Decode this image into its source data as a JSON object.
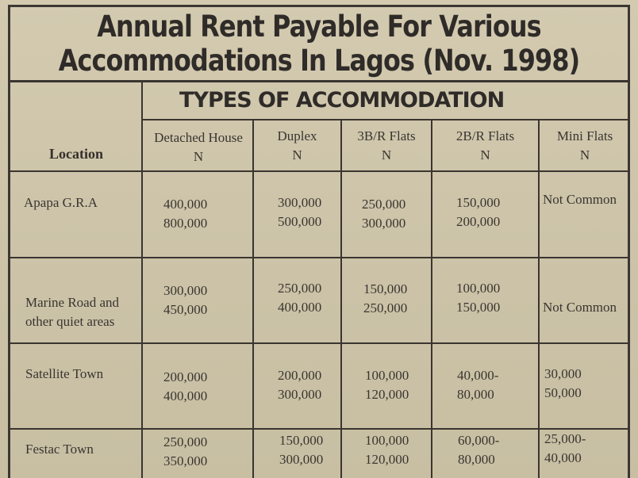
{
  "title_line1": "Annual Rent Payable For Various",
  "title_line2": "Accommodations In Lagos (Nov. 1998)",
  "types_heading": "TYPES OF ACCOMMODATION",
  "location_header": "Location",
  "columns": [
    {
      "name": "Detached House",
      "unit": "N"
    },
    {
      "name": "Duplex",
      "unit": "N"
    },
    {
      "name": "3B/R Flats",
      "unit": "N"
    },
    {
      "name": "2B/R Flats",
      "unit": "N"
    },
    {
      "name": "Mini Flats",
      "unit": "N"
    }
  ],
  "rows": [
    {
      "location": "Apapa G.R.A",
      "detached": [
        "400,000",
        "800,000"
      ],
      "duplex": [
        "300,000",
        "500,000"
      ],
      "flat3": [
        "250,000",
        "300,000"
      ],
      "flat2": [
        "150,000",
        "200,000"
      ],
      "mini": [
        "Not Common",
        ""
      ]
    },
    {
      "location": "Marine Road and other quiet areas",
      "location_line1": "Marine Road and",
      "location_line2": "other quiet areas",
      "detached": [
        "300,000",
        "450,000"
      ],
      "duplex": [
        "250,000",
        "400,000"
      ],
      "flat3": [
        "150,000",
        "250,000"
      ],
      "flat2": [
        "100,000",
        "150,000"
      ],
      "mini": [
        "Not Common",
        ""
      ]
    },
    {
      "location": "Satellite Town",
      "detached": [
        "200,000",
        "400,000"
      ],
      "duplex": [
        "200,000",
        "300,000"
      ],
      "flat3": [
        "100,000",
        "120,000"
      ],
      "flat2": [
        "40,000-",
        "80,000"
      ],
      "mini": [
        "30,000",
        "50,000"
      ]
    },
    {
      "location": "Festac Town",
      "detached": [
        "250,000",
        "350,000"
      ],
      "duplex": [
        "150,000",
        "300,000"
      ],
      "flat3": [
        "100,000",
        "120,000"
      ],
      "flat2": [
        "60,000-",
        "80,000"
      ],
      "mini": [
        "25,000-",
        "40,000"
      ]
    }
  ]
}
